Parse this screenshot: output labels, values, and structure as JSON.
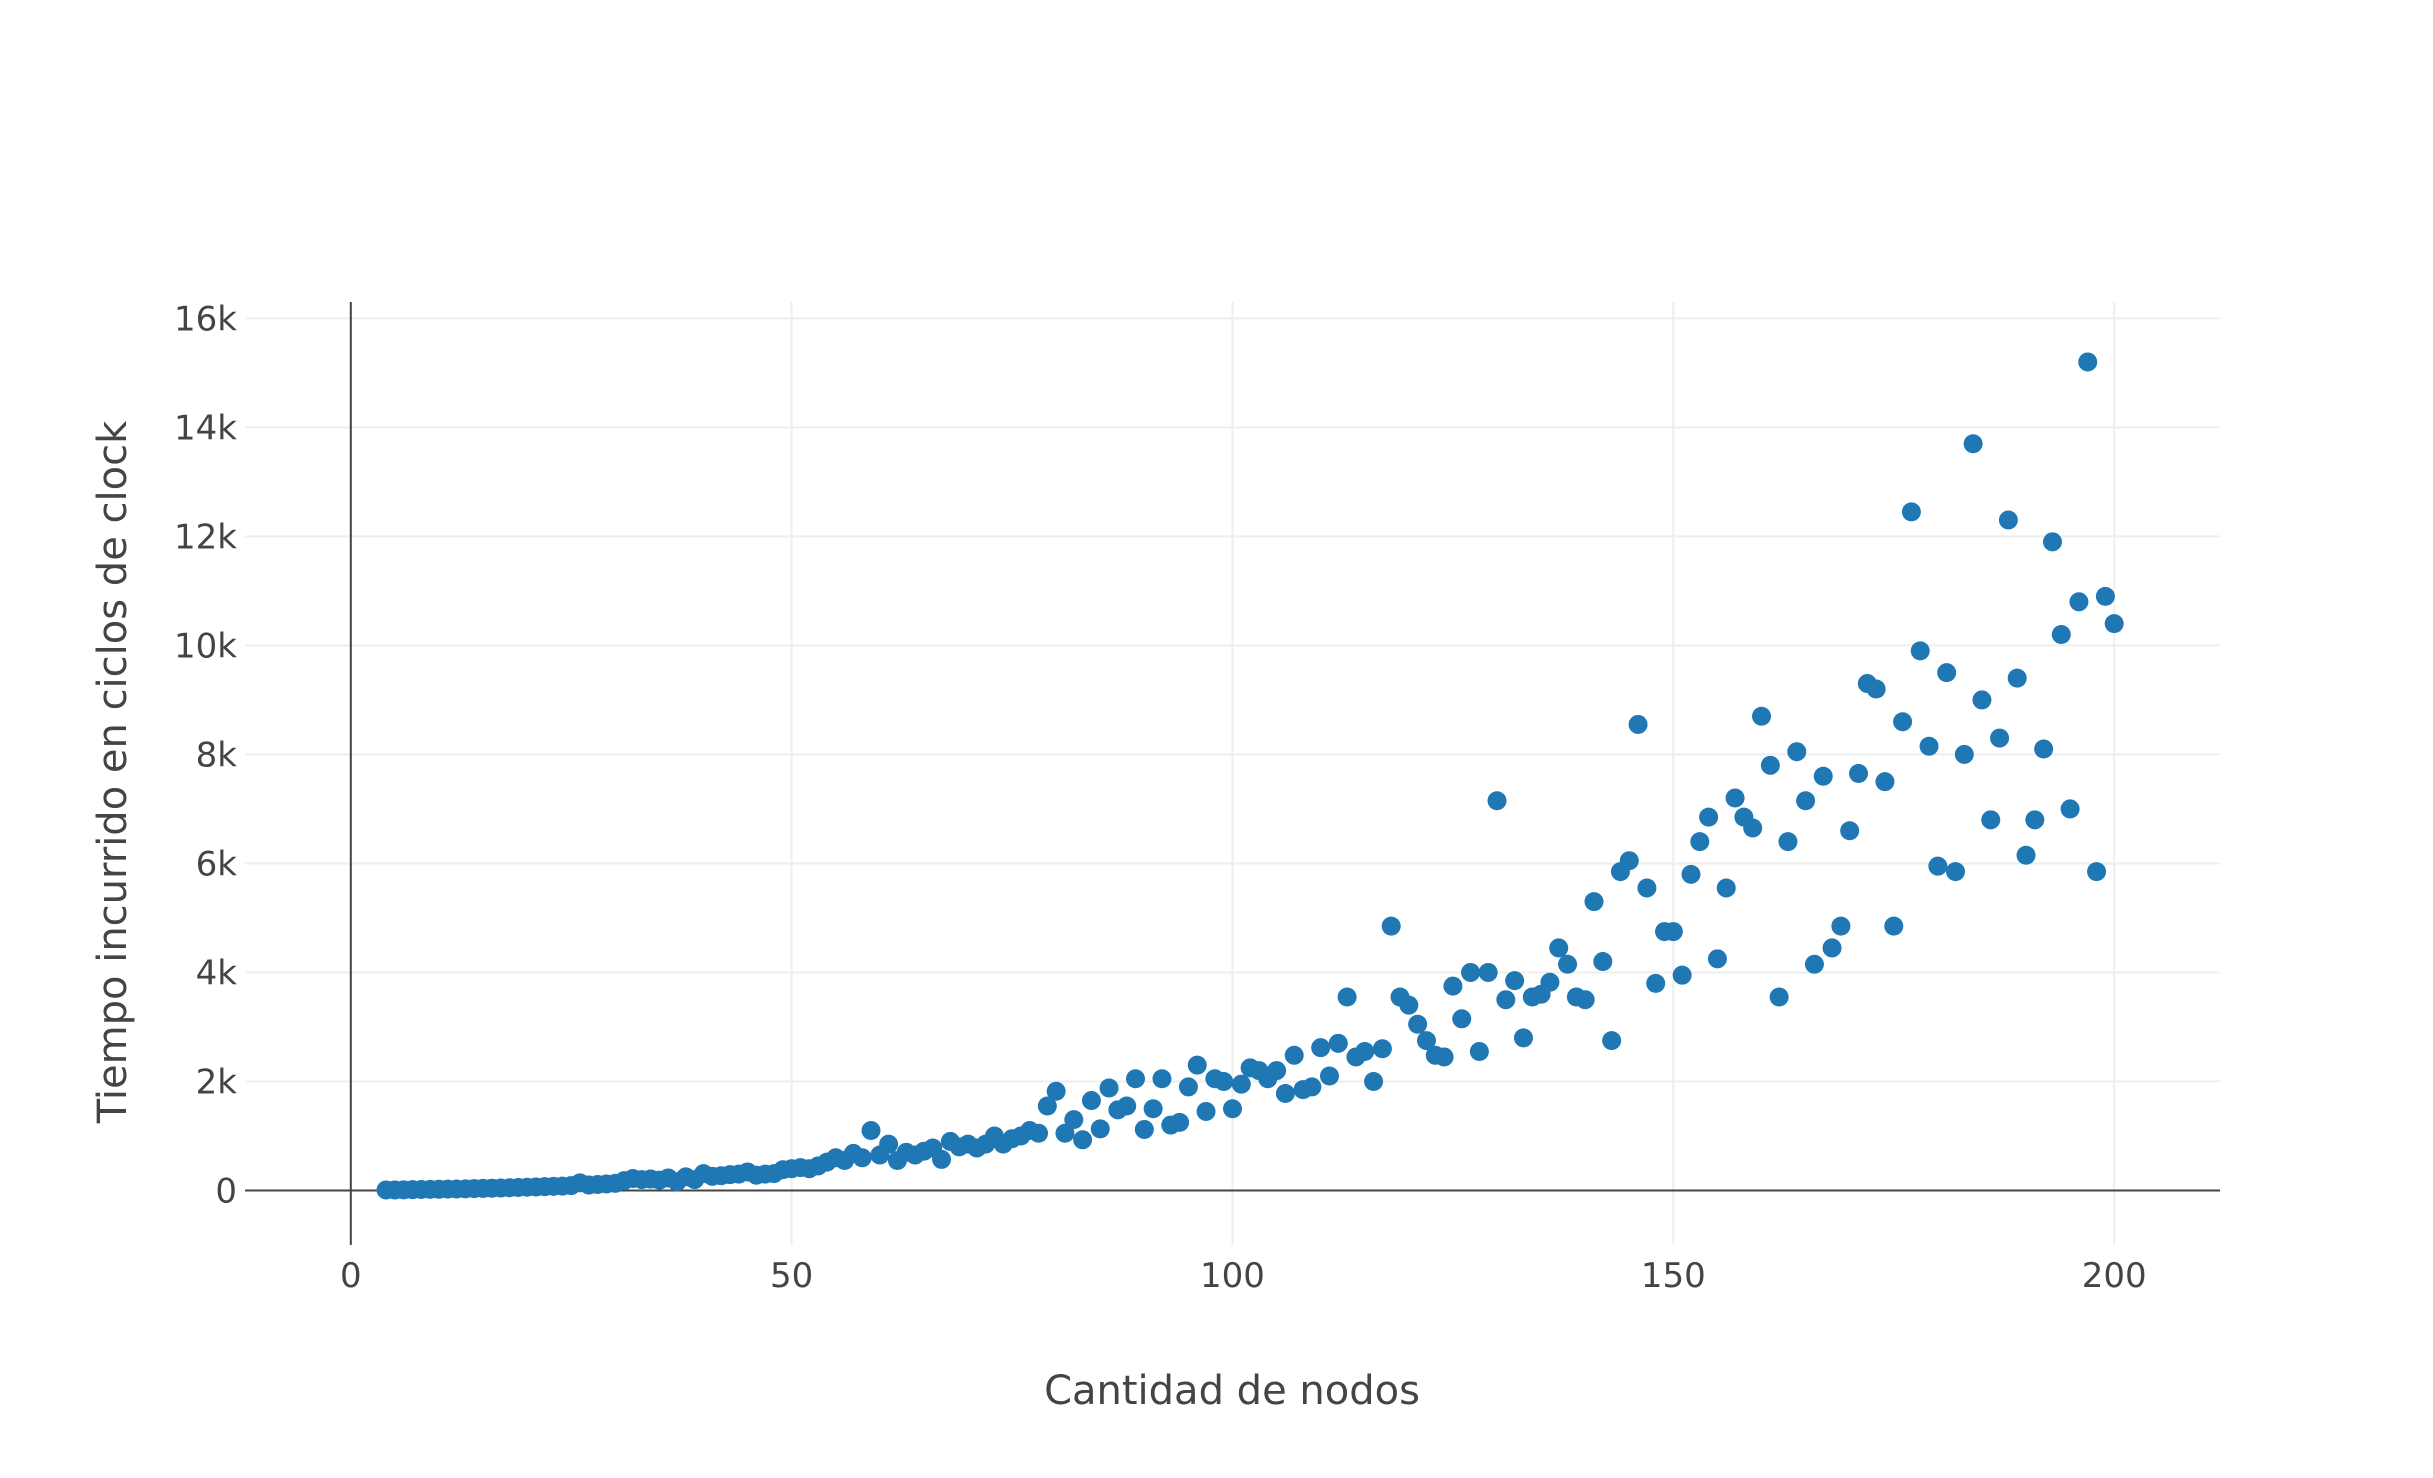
{
  "chart_data": {
    "type": "scatter",
    "xlabel": "Cantidad de nodos",
    "ylabel": "Tiempo incurrido en ciclos de clock",
    "xlim": [
      -12,
      212
    ],
    "ylim": [
      -1000,
      16300
    ],
    "x_ticks": [
      {
        "value": 0,
        "label": "0"
      },
      {
        "value": 50,
        "label": "50"
      },
      {
        "value": 100,
        "label": "100"
      },
      {
        "value": 150,
        "label": "150"
      },
      {
        "value": 200,
        "label": "200"
      }
    ],
    "y_ticks": [
      {
        "value": 0,
        "label": "0"
      },
      {
        "value": 2000,
        "label": "2k"
      },
      {
        "value": 4000,
        "label": "4k"
      },
      {
        "value": 6000,
        "label": "6k"
      },
      {
        "value": 8000,
        "label": "8k"
      },
      {
        "value": 10000,
        "label": "10k"
      },
      {
        "value": 12000,
        "label": "12k"
      },
      {
        "value": 14000,
        "label": "14k"
      },
      {
        "value": 16000,
        "label": "16k"
      }
    ],
    "grid": true,
    "marker_color": "#1f77b4",
    "gridline_color": "#eeeeee",
    "zeroline_color": "#444444",
    "series": [
      {
        "points": [
          [
            4,
            10
          ],
          [
            5,
            10
          ],
          [
            6,
            12
          ],
          [
            7,
            15
          ],
          [
            8,
            18
          ],
          [
            9,
            20
          ],
          [
            10,
            22
          ],
          [
            11,
            25
          ],
          [
            12,
            28
          ],
          [
            13,
            30
          ],
          [
            14,
            35
          ],
          [
            15,
            38
          ],
          [
            16,
            42
          ],
          [
            17,
            45
          ],
          [
            18,
            50
          ],
          [
            19,
            55
          ],
          [
            20,
            60
          ],
          [
            21,
            65
          ],
          [
            22,
            70
          ],
          [
            23,
            75
          ],
          [
            24,
            80
          ],
          [
            25,
            90
          ],
          [
            26,
            140
          ],
          [
            27,
            100
          ],
          [
            28,
            110
          ],
          [
            29,
            120
          ],
          [
            30,
            130
          ],
          [
            31,
            180
          ],
          [
            32,
            220
          ],
          [
            33,
            200
          ],
          [
            34,
            210
          ],
          [
            35,
            190
          ],
          [
            36,
            230
          ],
          [
            37,
            160
          ],
          [
            38,
            250
          ],
          [
            39,
            200
          ],
          [
            40,
            310
          ],
          [
            41,
            260
          ],
          [
            42,
            270
          ],
          [
            43,
            290
          ],
          [
            44,
            300
          ],
          [
            45,
            340
          ],
          [
            46,
            280
          ],
          [
            47,
            300
          ],
          [
            48,
            310
          ],
          [
            49,
            380
          ],
          [
            50,
            400
          ],
          [
            51,
            420
          ],
          [
            52,
            400
          ],
          [
            53,
            450
          ],
          [
            54,
            520
          ],
          [
            55,
            600
          ],
          [
            56,
            550
          ],
          [
            57,
            680
          ],
          [
            58,
            600
          ],
          [
            59,
            1100
          ],
          [
            60,
            650
          ],
          [
            61,
            850
          ],
          [
            62,
            550
          ],
          [
            63,
            700
          ],
          [
            64,
            650
          ],
          [
            65,
            720
          ],
          [
            66,
            780
          ],
          [
            67,
            570
          ],
          [
            68,
            900
          ],
          [
            69,
            800
          ],
          [
            70,
            850
          ],
          [
            71,
            780
          ],
          [
            72,
            850
          ],
          [
            73,
            1000
          ],
          [
            74,
            850
          ],
          [
            75,
            950
          ],
          [
            76,
            1000
          ],
          [
            77,
            1100
          ],
          [
            78,
            1050
          ],
          [
            79,
            1550
          ],
          [
            80,
            1820
          ],
          [
            81,
            1050
          ],
          [
            82,
            1300
          ],
          [
            83,
            930
          ],
          [
            84,
            1650
          ],
          [
            85,
            1130
          ],
          [
            86,
            1880
          ],
          [
            87,
            1480
          ],
          [
            88,
            1550
          ],
          [
            89,
            2050
          ],
          [
            90,
            1120
          ],
          [
            91,
            1500
          ],
          [
            92,
            2050
          ],
          [
            93,
            1200
          ],
          [
            94,
            1250
          ],
          [
            95,
            1900
          ],
          [
            96,
            2300
          ],
          [
            97,
            1450
          ],
          [
            98,
            2050
          ],
          [
            99,
            2000
          ],
          [
            100,
            1500
          ],
          [
            101,
            1950
          ],
          [
            102,
            2250
          ],
          [
            103,
            2200
          ],
          [
            104,
            2050
          ],
          [
            105,
            2200
          ],
          [
            106,
            1780
          ],
          [
            107,
            2480
          ],
          [
            108,
            1850
          ],
          [
            109,
            1900
          ],
          [
            110,
            2620
          ],
          [
            111,
            2100
          ],
          [
            112,
            2700
          ],
          [
            113,
            3550
          ],
          [
            114,
            2450
          ],
          [
            115,
            2550
          ],
          [
            116,
            2000
          ],
          [
            117,
            2600
          ],
          [
            118,
            4850
          ],
          [
            119,
            3550
          ],
          [
            120,
            3400
          ],
          [
            121,
            3050
          ],
          [
            122,
            2750
          ],
          [
            123,
            2480
          ],
          [
            124,
            2450
          ],
          [
            125,
            3750
          ],
          [
            126,
            3150
          ],
          [
            127,
            4000
          ],
          [
            128,
            2550
          ],
          [
            129,
            4000
          ],
          [
            130,
            7150
          ],
          [
            131,
            3500
          ],
          [
            132,
            3850
          ],
          [
            133,
            2800
          ],
          [
            134,
            3550
          ],
          [
            135,
            3600
          ],
          [
            136,
            3820
          ],
          [
            137,
            4450
          ],
          [
            138,
            4150
          ],
          [
            139,
            3550
          ],
          [
            140,
            3500
          ],
          [
            141,
            5300
          ],
          [
            142,
            4200
          ],
          [
            143,
            2750
          ],
          [
            144,
            5850
          ],
          [
            145,
            6050
          ],
          [
            146,
            8550
          ],
          [
            147,
            5550
          ],
          [
            148,
            3800
          ],
          [
            149,
            4750
          ],
          [
            150,
            4750
          ],
          [
            151,
            3950
          ],
          [
            152,
            5800
          ],
          [
            153,
            6400
          ],
          [
            154,
            6850
          ],
          [
            155,
            4250
          ],
          [
            156,
            5550
          ],
          [
            157,
            7200
          ],
          [
            158,
            6850
          ],
          [
            159,
            6650
          ],
          [
            160,
            8700
          ],
          [
            161,
            7800
          ],
          [
            162,
            3550
          ],
          [
            163,
            6400
          ],
          [
            164,
            8050
          ],
          [
            165,
            7150
          ],
          [
            166,
            4150
          ],
          [
            167,
            7600
          ],
          [
            168,
            4450
          ],
          [
            169,
            4850
          ],
          [
            170,
            6600
          ],
          [
            171,
            7650
          ],
          [
            172,
            9300
          ],
          [
            173,
            9200
          ],
          [
            174,
            7500
          ],
          [
            175,
            4850
          ],
          [
            176,
            8600
          ],
          [
            177,
            12450
          ],
          [
            178,
            9900
          ],
          [
            179,
            8150
          ],
          [
            180,
            5950
          ],
          [
            181,
            9500
          ],
          [
            182,
            5850
          ],
          [
            183,
            8000
          ],
          [
            184,
            13700
          ],
          [
            185,
            9000
          ],
          [
            186,
            6800
          ],
          [
            187,
            8300
          ],
          [
            188,
            12300
          ],
          [
            189,
            9400
          ],
          [
            190,
            6150
          ],
          [
            191,
            6800
          ],
          [
            192,
            8100
          ],
          [
            193,
            11900
          ],
          [
            194,
            10200
          ],
          [
            195,
            7000
          ],
          [
            196,
            10800
          ],
          [
            197,
            15200
          ],
          [
            198,
            5850
          ],
          [
            199,
            10900
          ],
          [
            200,
            10400
          ]
        ]
      }
    ]
  }
}
